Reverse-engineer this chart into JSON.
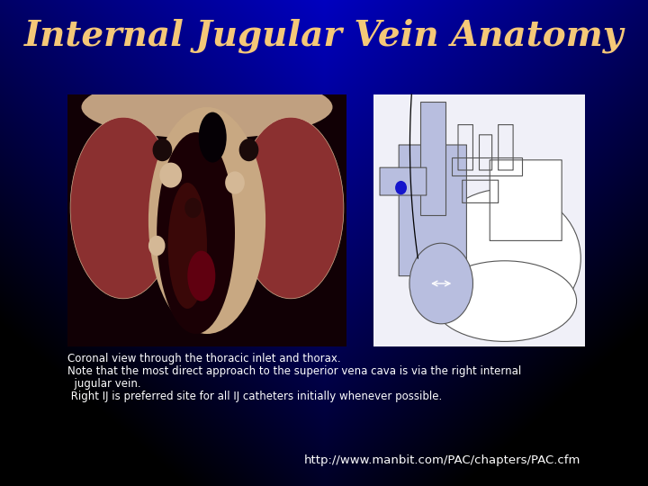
{
  "title": "Internal Jugular Vein Anatomy",
  "title_color": "#F5C878",
  "title_fontsize": 28,
  "title_style": "italic",
  "title_weight": "bold",
  "text_color": "#FFFFFF",
  "body_lines": [
    "Coronal view through the thoracic inlet and thorax.",
    "Note that the most direct approach to the superior vena cava is via the right internal",
    "  jugular vein.",
    " Right IJ is preferred site for all IJ catheters initially whenever possible."
  ],
  "url_text": "http://www.manbit.com/PAC/chapters/PAC.cfm",
  "body_fontsize": 8.5,
  "url_fontsize": 9.5,
  "vein_color": "#B8BEDF",
  "outline_color": "#555555",
  "diag_bg": "#F0F0F8"
}
